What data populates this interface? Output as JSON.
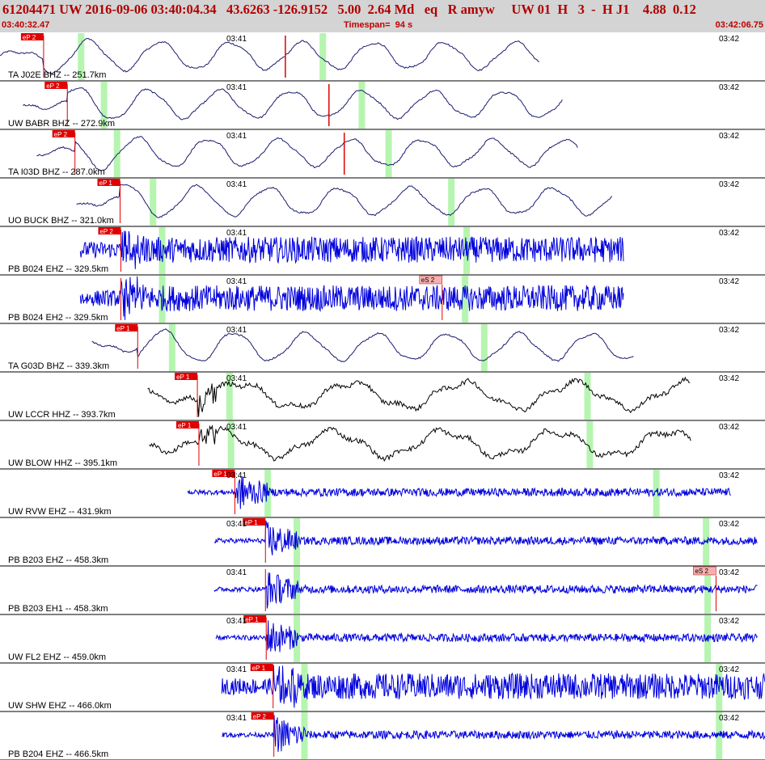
{
  "header": {
    "title": "61204471 UW 2016-09-06 03:40:04.34   43.6263 -126.9152   5.00  2.64 Md   eq   R amyw     UW 01  H   3  -  H J1    4.88  0.12",
    "start_time": "03:40:32.47",
    "timespan": "Timespan=  94 s",
    "end_time": "03:42:06.75"
  },
  "colors": {
    "header_bg": "#d4d4d4",
    "title": "#b00000",
    "pick_marker": "#e00000",
    "s_pick_marker": "#f4b0b0",
    "coda_window": "#b6f5b0",
    "trace_broadband": "#1a1a6e",
    "trace_short_period": "#0000dd",
    "trace_black": "#000000"
  },
  "time_ticks": [
    "03:41",
    "03:42"
  ],
  "traces": [
    {
      "label": "TA J02E BHZ -- 251.7km",
      "pick": "eP 2",
      "style": "long-period",
      "color": "#1a1a6e",
      "start": 0.0,
      "end": 0.705,
      "pick_pos": 0.057,
      "green": [
        0.106,
        0.422
      ],
      "extra_red": 0.373
    },
    {
      "label": "UW BABR BHZ -- 272.9km",
      "pick": "eP 2",
      "style": "long-period",
      "color": "#1a1a6e",
      "start": 0.03,
      "end": 0.735,
      "pick_pos": 0.088,
      "green": [
        0.136,
        0.473
      ],
      "extra_red": 0.43
    },
    {
      "label": "TA I03D BHZ -- 287.0km",
      "pick": "eP 2",
      "style": "long-period",
      "color": "#1a1a6e",
      "start": 0.048,
      "end": 0.755,
      "pick_pos": 0.098,
      "green": [
        0.153,
        0.508
      ],
      "extra_red": 0.45
    },
    {
      "label": "UO BUCK BHZ -- 321.0km",
      "pick": "eP 1",
      "style": "long-period",
      "color": "#1a1a6e",
      "start": 0.1,
      "end": 0.8,
      "pick_pos": 0.157,
      "green": [
        0.2,
        0.59
      ]
    },
    {
      "label": "PB B024 EHZ -- 329.5km",
      "pick": "eP 2",
      "style": "noisy",
      "color": "#0000dd",
      "start": 0.105,
      "end": 0.815,
      "pick_pos": 0.158,
      "green": [
        0.212,
        0.61
      ]
    },
    {
      "label": "PB B024 EH2 -- 329.5km",
      "pick": "",
      "style": "noisy",
      "color": "#0000dd",
      "start": 0.105,
      "end": 0.815,
      "pick_pos": 0.158,
      "green": [
        0.212,
        0.608
      ],
      "s_pick": "eS 2",
      "s_pos": 0.578
    },
    {
      "label": "TA G03D BHZ -- 339.3km",
      "pick": "eP 1",
      "style": "long-period",
      "color": "#1a1a6e",
      "start": 0.12,
      "end": 0.828,
      "pick_pos": 0.18,
      "green": [
        0.225,
        0.633
      ]
    },
    {
      "label": "UW LCCR HHZ -- 393.7km",
      "pick": "eP 1",
      "style": "wavy",
      "color": "#000000",
      "start": 0.193,
      "end": 0.902,
      "pick_pos": 0.258,
      "green": [
        0.3,
        0.768
      ]
    },
    {
      "label": "UW BLOW HHZ -- 395.1km",
      "pick": "eP 1",
      "style": "wavy",
      "color": "#000000",
      "start": 0.195,
      "end": 0.903,
      "pick_pos": 0.26,
      "green": [
        0.302,
        0.771
      ]
    },
    {
      "label": "UW RVW EHZ -- 431.9km",
      "pick": "eP 1",
      "style": "quiet",
      "color": "#0000dd",
      "start": 0.245,
      "end": 0.955,
      "pick_pos": 0.307,
      "green": [
        0.35,
        0.858
      ]
    },
    {
      "label": "PB B203 EHZ -- 458.3km",
      "pick": "eP 1",
      "style": "quiet",
      "color": "#0000dd",
      "start": 0.28,
      "end": 0.99,
      "pick_pos": 0.347,
      "green": [
        0.388,
        0.923
      ]
    },
    {
      "label": "PB B203 EH1 -- 458.3km",
      "pick": "",
      "style": "quiet",
      "color": "#0000dd",
      "start": 0.28,
      "end": 0.99,
      "pick_pos": 0.347,
      "green": [
        0.388,
        0.925
      ],
      "s_pick": "eS 2",
      "s_pos": 0.936
    },
    {
      "label": "UW FL2 EHZ -- 459.0km",
      "pick": "eP 1",
      "style": "quiet",
      "color": "#0000dd",
      "start": 0.282,
      "end": 0.99,
      "pick_pos": 0.348,
      "green": [
        0.388,
        0.925
      ]
    },
    {
      "label": "UW SHW EHZ -- 466.0km",
      "pick": "eP 1",
      "style": "noisy",
      "color": "#0000dd",
      "start": 0.29,
      "end": 1.0,
      "pick_pos": 0.357,
      "green": [
        0.398,
        0.94
      ]
    },
    {
      "label": "PB B204 EHZ -- 466.5km",
      "pick": "eP 2",
      "style": "quiet",
      "color": "#0000dd",
      "start": 0.29,
      "end": 1.0,
      "pick_pos": 0.358,
      "green": [
        0.398,
        0.94
      ]
    }
  ]
}
